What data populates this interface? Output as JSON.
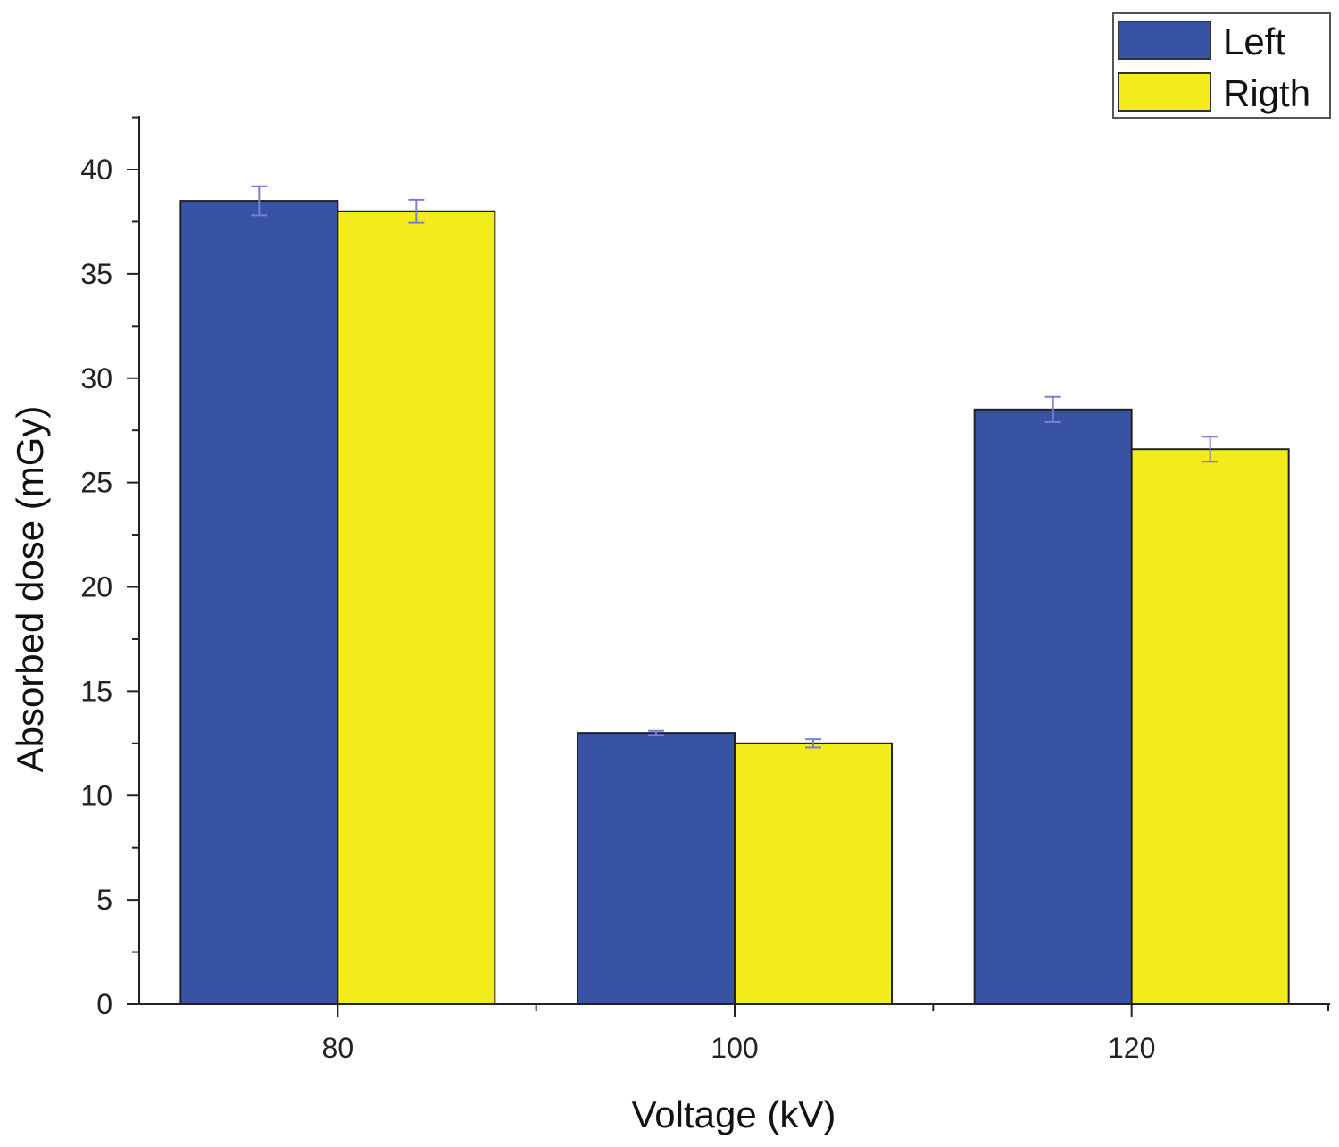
{
  "chart_data": {
    "type": "bar",
    "title": "",
    "xlabel": "Voltage (kV)",
    "ylabel": "Absorbed dose (mGy)",
    "categories": [
      "80",
      "100",
      "120"
    ],
    "ylim": [
      0,
      42.5
    ],
    "yticks": [
      0,
      5,
      10,
      15,
      20,
      25,
      30,
      35,
      40
    ],
    "legend_position": "top-right",
    "grid": false,
    "series": [
      {
        "name": "Left",
        "color": "#3953a4",
        "values": [
          38.5,
          13.0,
          28.5
        ],
        "errors": [
          0.7,
          0.1,
          0.6
        ]
      },
      {
        "name": "Rigth",
        "color": "#f2ec1a",
        "values": [
          38.0,
          12.5,
          26.6
        ],
        "errors": [
          0.55,
          0.2,
          0.6
        ]
      }
    ]
  }
}
